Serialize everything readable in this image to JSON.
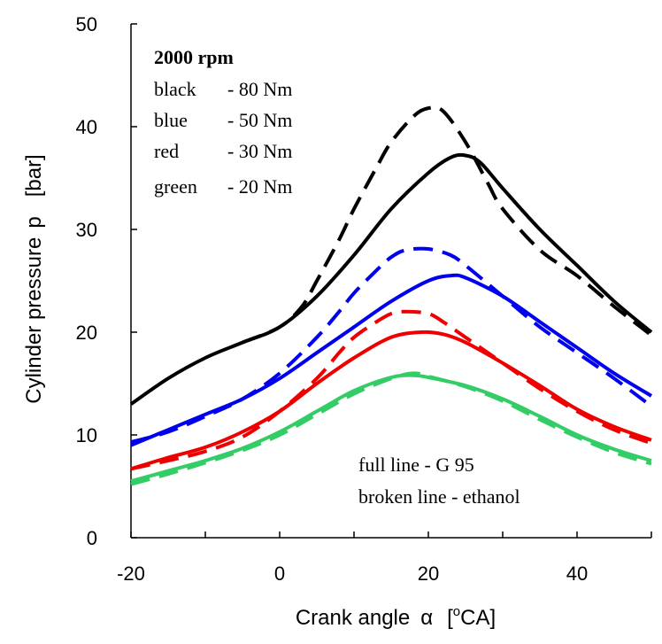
{
  "chart_data": {
    "type": "line",
    "xlabel": {
      "main": "Crank angle",
      "symbol": "α",
      "unit_open": "[",
      "unit_sup": "o",
      "unit_text": "CA]"
    },
    "ylabel": {
      "main": "Cylinder pressure",
      "symbol": "p",
      "unit": "[bar]"
    },
    "xlim": [
      -20,
      50
    ],
    "ylim": [
      0,
      50
    ],
    "x_ticks": [
      -20,
      0,
      20,
      40
    ],
    "y_ticks": [
      0,
      10,
      20,
      30,
      40,
      50
    ],
    "x_tick_labels": [
      "-20",
      "0",
      "20",
      "40"
    ],
    "y_tick_labels": [
      "0",
      "10",
      "20",
      "30",
      "40",
      "50"
    ],
    "grid": false,
    "annotations": {
      "title": "2000 rpm",
      "legend_lines": [
        {
          "color_word": "black",
          "text": "- 80 Nm"
        },
        {
          "color_word": "blue",
          "text": "- 50 Nm"
        },
        {
          "color_word": "red",
          "text": "- 30 Nm"
        },
        {
          "color_word": "green",
          "text": "- 20 Nm"
        }
      ],
      "line_style_notes": [
        "full line - G 95",
        "broken line - ethanol"
      ]
    },
    "series": [
      {
        "color": "#000000",
        "style": "solid",
        "x": [
          -20,
          -15,
          -10,
          -5,
          0,
          5,
          10,
          15,
          20,
          23,
          25,
          27,
          30,
          35,
          40,
          45,
          50
        ],
        "y": [
          13,
          15.5,
          17.5,
          19,
          20.5,
          23.5,
          27.5,
          32,
          35.5,
          37,
          37.2,
          36.5,
          34,
          30,
          26.5,
          23,
          20
        ]
      },
      {
        "color": "#000000",
        "style": "dashed",
        "x": [
          -5,
          0,
          3,
          5,
          8,
          10,
          13,
          15,
          18,
          20,
          22,
          25,
          28,
          30,
          35,
          40,
          45,
          50
        ],
        "y": [
          19,
          20.5,
          22.5,
          25,
          29,
          32,
          36,
          38.5,
          41,
          41.8,
          41.5,
          38.5,
          34.5,
          32,
          28,
          25.5,
          22.5,
          19.7
        ]
      },
      {
        "color": "#0000ee",
        "style": "solid",
        "x": [
          -20,
          -15,
          -10,
          -5,
          0,
          5,
          10,
          15,
          20,
          23,
          25,
          30,
          35,
          40,
          45,
          50
        ],
        "y": [
          9,
          10.5,
          12,
          13.5,
          15.5,
          18,
          20.5,
          23,
          25,
          25.5,
          25.3,
          23.5,
          21,
          18.5,
          16,
          13.8
        ]
      },
      {
        "color": "#0000ee",
        "style": "dashed",
        "x": [
          -20,
          -15,
          -10,
          -5,
          0,
          5,
          8,
          10,
          13,
          15,
          17,
          20,
          23,
          25,
          30,
          35,
          40,
          45,
          50
        ],
        "y": [
          9.3,
          10.3,
          11.8,
          13.5,
          16,
          19.5,
          22,
          23.8,
          26,
          27.3,
          28,
          28.1,
          27.5,
          26.5,
          23.5,
          20.5,
          18,
          15.5,
          12.8
        ]
      },
      {
        "color": "#ee0000",
        "style": "solid",
        "x": [
          -20,
          -15,
          -10,
          -5,
          0,
          5,
          10,
          15,
          19,
          22,
          25,
          30,
          35,
          40,
          45,
          50
        ],
        "y": [
          6.7,
          7.8,
          8.8,
          10.3,
          12.3,
          15,
          17.5,
          19.5,
          20,
          19.8,
          19,
          17,
          14.8,
          12.5,
          10.8,
          9.5
        ]
      },
      {
        "color": "#ee0000",
        "style": "dashed",
        "x": [
          -20,
          -15,
          -10,
          -5,
          0,
          5,
          8,
          10,
          13,
          15,
          17,
          20,
          22,
          25,
          30,
          35,
          40,
          45,
          50
        ],
        "y": [
          6.7,
          7.5,
          8.4,
          9.8,
          12.3,
          15.5,
          18,
          19.5,
          21,
          21.8,
          22,
          21.8,
          21,
          19.5,
          17,
          14.5,
          12.3,
          10.5,
          9.2
        ]
      },
      {
        "color": "#33cc66",
        "style": "solid",
        "x": [
          -20,
          -15,
          -10,
          -5,
          0,
          5,
          10,
          15,
          18,
          20,
          25,
          30,
          35,
          40,
          45,
          50
        ],
        "y": [
          5.5,
          6.5,
          7.5,
          8.7,
          10.3,
          12.3,
          14.3,
          15.6,
          15.8,
          15.6,
          14.8,
          13.5,
          11.8,
          10,
          8.6,
          7.5
        ]
      },
      {
        "color": "#33cc66",
        "style": "dashed",
        "x": [
          -20,
          -15,
          -10,
          -5,
          0,
          5,
          10,
          15,
          18,
          20,
          25,
          30,
          35,
          40,
          45,
          50
        ],
        "y": [
          5.2,
          6.2,
          7.3,
          8.5,
          10,
          12,
          14,
          15.5,
          16,
          15.7,
          14.7,
          13.3,
          11.5,
          9.8,
          8.3,
          7.2
        ]
      }
    ]
  }
}
